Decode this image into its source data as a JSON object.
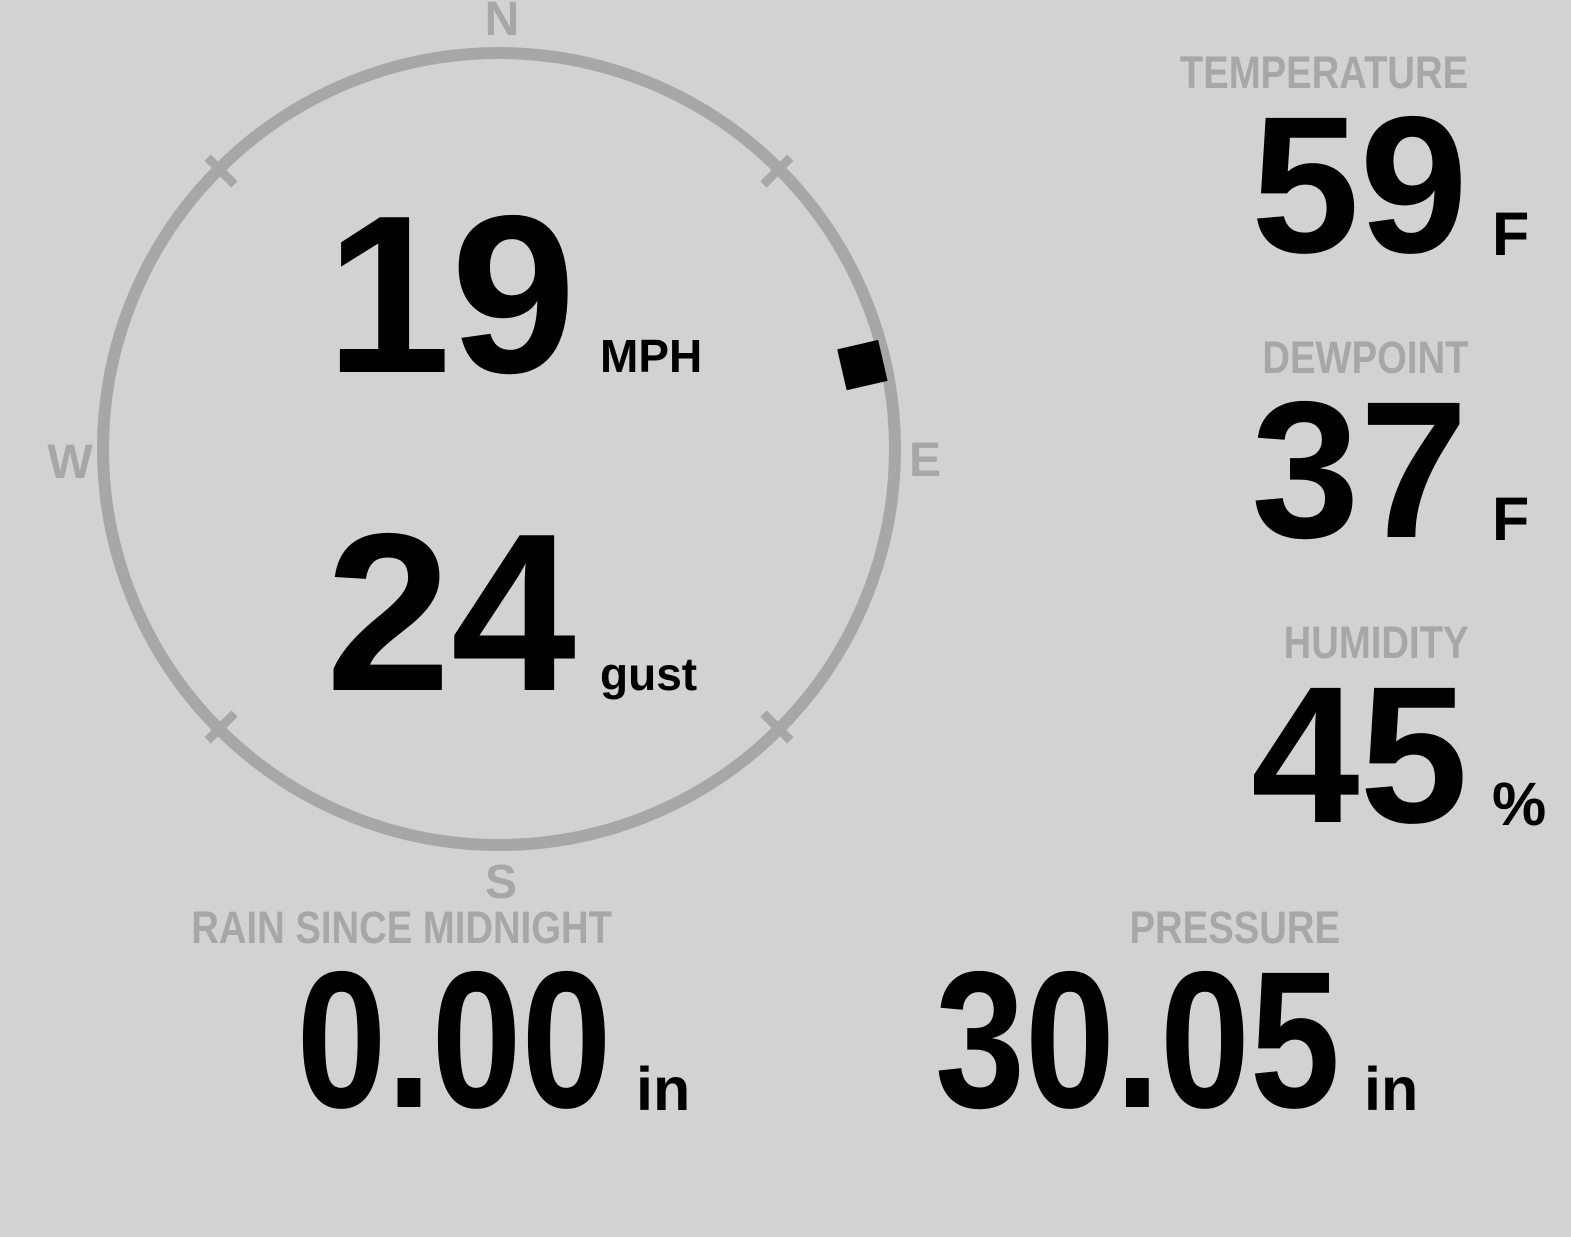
{
  "console": {
    "background_color": "#d2d2d2",
    "muted_color": "#a7a7a7",
    "text_color": "#000000"
  },
  "wind": {
    "compass_labels": {
      "north": "N",
      "east": "E",
      "south": "S",
      "west": "W"
    },
    "speed_value": "19",
    "speed_unit": "MPH",
    "gust_value": "24",
    "gust_unit": "gust",
    "direction_degrees": 77
  },
  "temperature": {
    "label": "TEMPERATURE",
    "value": "59",
    "unit": "F"
  },
  "dewpoint": {
    "label": "DEWPOINT",
    "value": "37",
    "unit": "F"
  },
  "humidity": {
    "label": "HUMIDITY",
    "value": "45",
    "unit": "%"
  },
  "rain_since_midnight": {
    "label": "RAIN SINCE MIDNIGHT",
    "value": "0.00",
    "unit": "in"
  },
  "pressure": {
    "label": "PRESSURE",
    "value": "30.05",
    "unit": "in"
  }
}
